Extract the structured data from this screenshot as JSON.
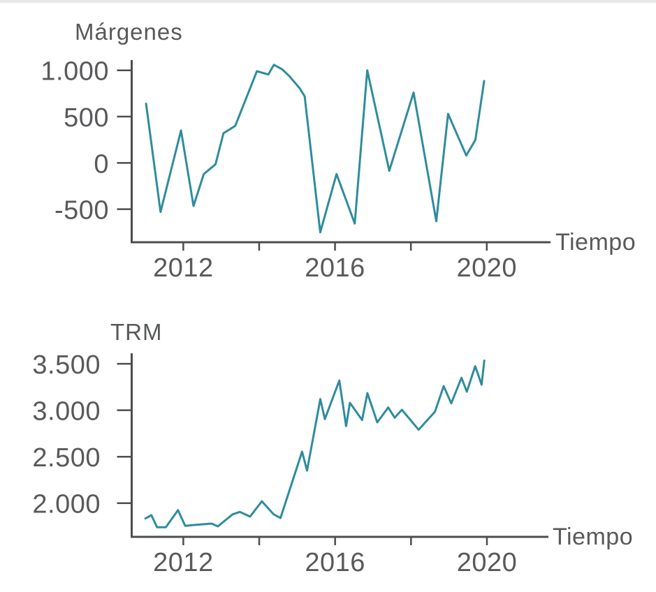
{
  "palette": {
    "line_color": "#2E8C9D",
    "axis_color": "#4D4D4E",
    "text_color": "#58595B",
    "top_strip_color": "#E8E8EA",
    "background": "#FFFFFF"
  },
  "chart_data": [
    {
      "type": "line",
      "title": "Márgenes",
      "xlabel": "Tiempo",
      "ylabel": "",
      "legend": "none",
      "grid": false,
      "xlim": [
        2010.64,
        2021.68
      ],
      "ylim": [
        -857,
        1111
      ],
      "x_ticks": [
        {
          "value": 2012,
          "label": "2012"
        },
        {
          "value": 2014,
          "label": ""
        },
        {
          "value": 2016,
          "label": "2016"
        },
        {
          "value": 2018,
          "label": ""
        },
        {
          "value": 2020,
          "label": "2020"
        }
      ],
      "y_ticks": [
        {
          "value": 1000,
          "label": "1.000"
        },
        {
          "value": 500,
          "label": "500"
        },
        {
          "value": 0,
          "label": "0"
        },
        {
          "value": -500,
          "label": "-500"
        }
      ],
      "points": [
        [
          2011.02,
          640
        ],
        [
          2011.4,
          -530
        ],
        [
          2011.94,
          350
        ],
        [
          2012.27,
          -465
        ],
        [
          2012.54,
          -120
        ],
        [
          2012.85,
          -15
        ],
        [
          2013.06,
          320
        ],
        [
          2013.37,
          400
        ],
        [
          2013.94,
          990
        ],
        [
          2014.24,
          955
        ],
        [
          2014.39,
          1060
        ],
        [
          2014.61,
          1010
        ],
        [
          2014.8,
          935
        ],
        [
          2015.07,
          805
        ],
        [
          2015.2,
          720
        ],
        [
          2015.61,
          -750
        ],
        [
          2016.04,
          -120
        ],
        [
          2016.52,
          -655
        ],
        [
          2016.85,
          1000
        ],
        [
          2017.43,
          -85
        ],
        [
          2018.07,
          760
        ],
        [
          2018.67,
          -630
        ],
        [
          2018.98,
          530
        ],
        [
          2019.46,
          80
        ],
        [
          2019.7,
          250
        ],
        [
          2019.93,
          885
        ]
      ]
    },
    {
      "type": "line",
      "title": "TRM",
      "xlabel": "Tiempo",
      "ylabel": "",
      "legend": "none",
      "grid": false,
      "xlim": [
        2010.64,
        2021.62
      ],
      "ylim": [
        1637,
        3614
      ],
      "x_ticks": [
        {
          "value": 2012,
          "label": "2012"
        },
        {
          "value": 2014,
          "label": ""
        },
        {
          "value": 2016,
          "label": "2016"
        },
        {
          "value": 2018,
          "label": ""
        },
        {
          "value": 2020,
          "label": "2020"
        }
      ],
      "y_ticks": [
        {
          "value": 3500,
          "label": "3.500"
        },
        {
          "value": 3000,
          "label": "3.000"
        },
        {
          "value": 2500,
          "label": "2.500"
        },
        {
          "value": 2000,
          "label": "2.000"
        }
      ],
      "points": [
        [
          2011.0,
          1835
        ],
        [
          2011.16,
          1870
        ],
        [
          2011.31,
          1740
        ],
        [
          2011.54,
          1740
        ],
        [
          2011.86,
          1925
        ],
        [
          2012.05,
          1755
        ],
        [
          2012.28,
          1765
        ],
        [
          2012.75,
          1780
        ],
        [
          2012.91,
          1750
        ],
        [
          2013.3,
          1880
        ],
        [
          2013.49,
          1905
        ],
        [
          2013.76,
          1855
        ],
        [
          2014.07,
          2020
        ],
        [
          2014.38,
          1880
        ],
        [
          2014.56,
          1840
        ],
        [
          2015.13,
          2555
        ],
        [
          2015.26,
          2350
        ],
        [
          2015.61,
          3120
        ],
        [
          2015.73,
          2905
        ],
        [
          2016.11,
          3320
        ],
        [
          2016.29,
          2830
        ],
        [
          2016.39,
          3080
        ],
        [
          2016.71,
          2895
        ],
        [
          2016.85,
          3185
        ],
        [
          2017.11,
          2870
        ],
        [
          2017.4,
          3030
        ],
        [
          2017.57,
          2920
        ],
        [
          2017.76,
          3005
        ],
        [
          2018.2,
          2790
        ],
        [
          2018.63,
          2985
        ],
        [
          2018.86,
          3260
        ],
        [
          2019.06,
          3075
        ],
        [
          2019.33,
          3350
        ],
        [
          2019.47,
          3200
        ],
        [
          2019.69,
          3475
        ],
        [
          2019.86,
          3275
        ],
        [
          2019.93,
          3535
        ]
      ]
    }
  ]
}
